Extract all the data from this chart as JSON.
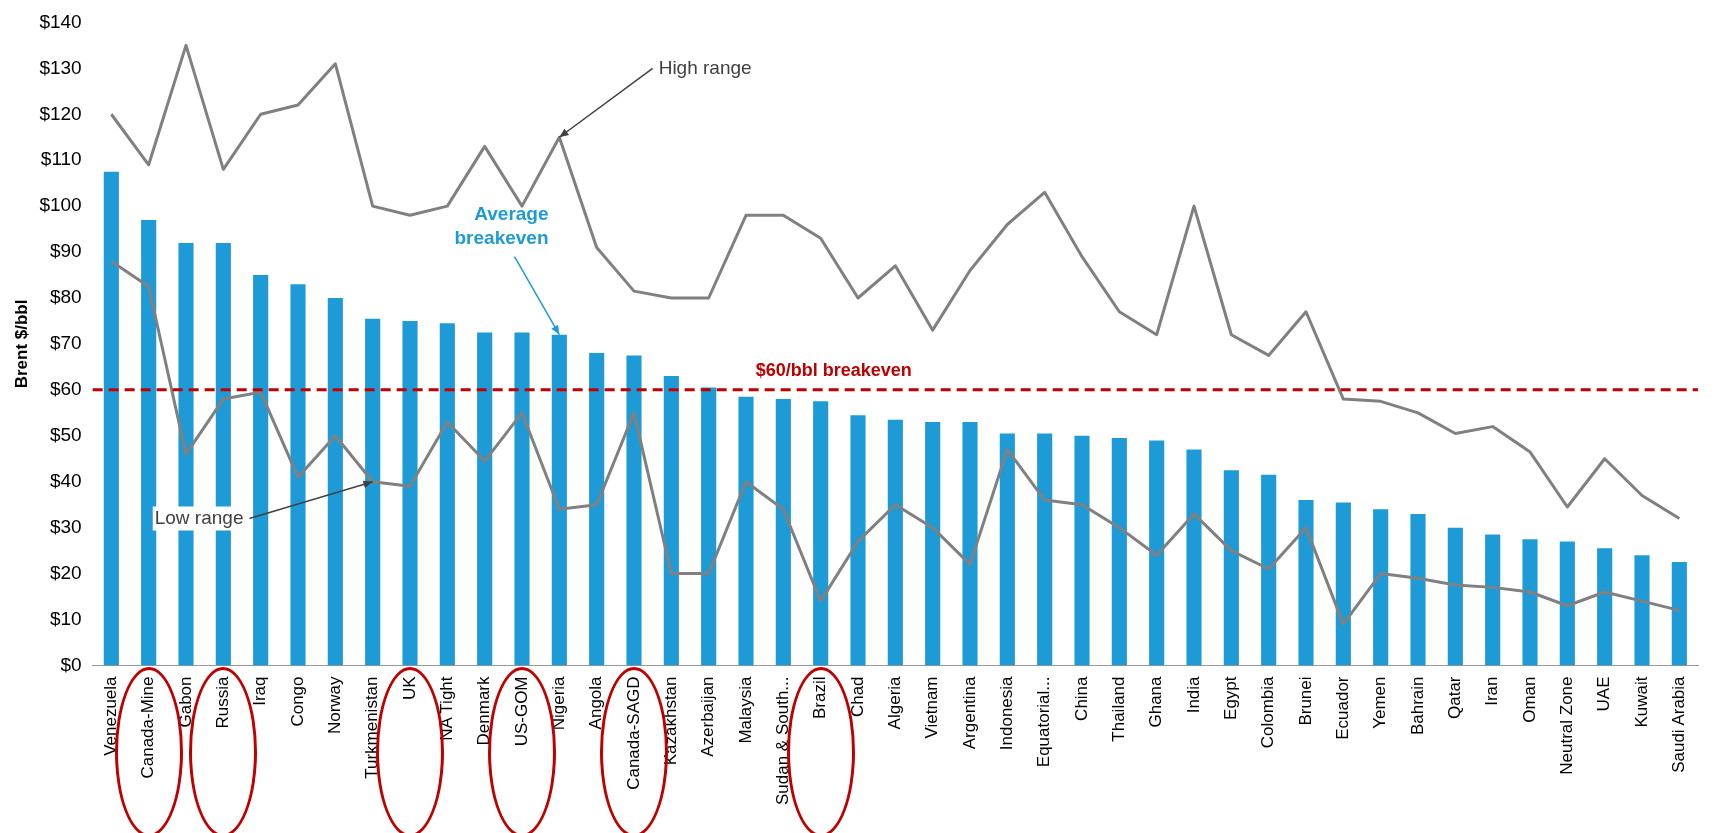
{
  "chart_data": {
    "type": "bar",
    "ylabel": "Brent $/bbl",
    "categories": [
      "Venezuela",
      "Canada-Mine",
      "Gabon",
      "Russia",
      "Iraq",
      "Congo",
      "Norway",
      "Turkmenistan",
      "UK",
      "NA Tight",
      "Denmark",
      "US-GOM",
      "Nigeria",
      "Angola",
      "Canada-SAGD",
      "Kazakhstan",
      "Azerbaijan",
      "Malaysia",
      "Sudan & South...",
      "Brazil",
      "Chad",
      "Algeria",
      "Vietnam",
      "Argentina",
      "Indonesia",
      "Equatorial...",
      "China",
      "Thailand",
      "Ghana",
      "India",
      "Egypt",
      "Colombia",
      "Brunei",
      "Ecuador",
      "Yemen",
      "Bahrain",
      "Qatar",
      "Iran",
      "Oman",
      "Neutral Zone",
      "UAE",
      "Kuwait",
      "Saudi Arabia"
    ],
    "series": [
      {
        "color": "#1e9bd7",
        "values": [
          107.5,
          97,
          92,
          92,
          85,
          83,
          80,
          75.5,
          75,
          74.5,
          72.5,
          72.5,
          72,
          68,
          67.5,
          63,
          60.5,
          58.5,
          58,
          57.5,
          54.5,
          53.5,
          53,
          53,
          50.5,
          50.5,
          50,
          49.5,
          49,
          47,
          42.5,
          41.5,
          36,
          35.5,
          34,
          33,
          30,
          28.5,
          27.5,
          27,
          25.5,
          24,
          22.5
        ]
      },
      {
        "type": "line",
        "color": "#808080",
        "values": [
          120,
          109,
          135,
          108,
          120,
          122,
          131,
          100,
          98,
          100,
          113,
          100,
          115,
          91,
          81.5,
          80,
          80,
          98,
          98,
          93,
          80,
          87,
          73,
          86,
          96,
          103,
          89,
          77,
          72,
          100,
          72,
          67.5,
          77,
          58,
          57.5,
          55,
          50.5,
          52,
          46.5,
          34.5,
          45,
          37,
          32
        ]
      },
      {
        "type": "line",
        "color": "#808080",
        "values": [
          88,
          82.5,
          46,
          58,
          59.5,
          41,
          50,
          40,
          39,
          53,
          44.5,
          55,
          34,
          35,
          55,
          20,
          20,
          40,
          34,
          14,
          27,
          35,
          30,
          22,
          47,
          36,
          35,
          30,
          24,
          33,
          25,
          21,
          30,
          9,
          20,
          19,
          17.5,
          17,
          16,
          13,
          16,
          14,
          12
        ]
      }
    ],
    "ylim": [
      0,
      140
    ],
    "yticks": [
      {
        "value": 0,
        "label": "$0"
      },
      {
        "value": 10,
        "label": "$10"
      },
      {
        "value": 20,
        "label": "$20"
      },
      {
        "value": 30,
        "label": "$30"
      },
      {
        "value": 40,
        "label": "$40"
      },
      {
        "value": 50,
        "label": "$50"
      },
      {
        "value": 60,
        "label": "$60"
      },
      {
        "value": 70,
        "label": "$70"
      },
      {
        "value": 80,
        "label": "$80"
      },
      {
        "value": 90,
        "label": "$90"
      },
      {
        "value": 100,
        "label": "$100"
      },
      {
        "value": 110,
        "label": "$110"
      },
      {
        "value": 120,
        "label": "$120"
      },
      {
        "value": 130,
        "label": "$130"
      },
      {
        "value": 140,
        "label": "$140"
      }
    ],
    "ref_lines": [
      {
        "axis": "y",
        "value": 60,
        "label": "$60/bbl breakeven",
        "color": "#c00000",
        "line_style": "dashed"
      }
    ],
    "annotations": [
      {
        "text": "High range",
        "x": "Nigeria",
        "y": 115
      },
      {
        "text": "Average breakeven",
        "x": "Nigeria",
        "y": 72
      },
      {
        "text": "Low range",
        "x": "Turkmenistan",
        "y": 40
      }
    ],
    "grid": false,
    "legend": false
  }
}
